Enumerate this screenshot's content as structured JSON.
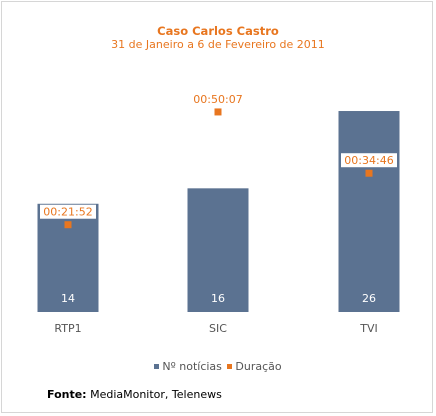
{
  "chart_data": {
    "type": "bar",
    "title": "Caso Carlos Castro",
    "subtitle": "31 de Janeiro a 6 de Fevereiro de 2011",
    "categories": [
      "RTP1",
      "SIC",
      "TVI"
    ],
    "series": [
      {
        "name": "Nº notícias",
        "type": "bar",
        "values": [
          14,
          16,
          26
        ],
        "labels": [
          "14",
          "16",
          "26"
        ],
        "color": "#5b7291"
      },
      {
        "name": "Duração",
        "type": "scatter",
        "values_seconds": [
          1312,
          3007,
          2086
        ],
        "labels": [
          "00:21:52",
          "00:50:07",
          "00:34:46"
        ],
        "color": "#e8761f"
      }
    ],
    "legend": "bottom",
    "grid": false
  },
  "source": {
    "label": "Fonte:",
    "text": " MediaMonitor, Telenews"
  },
  "colors": {
    "accent": "#e8761f",
    "bar": "#5b7291",
    "axis_text": "#555555"
  }
}
